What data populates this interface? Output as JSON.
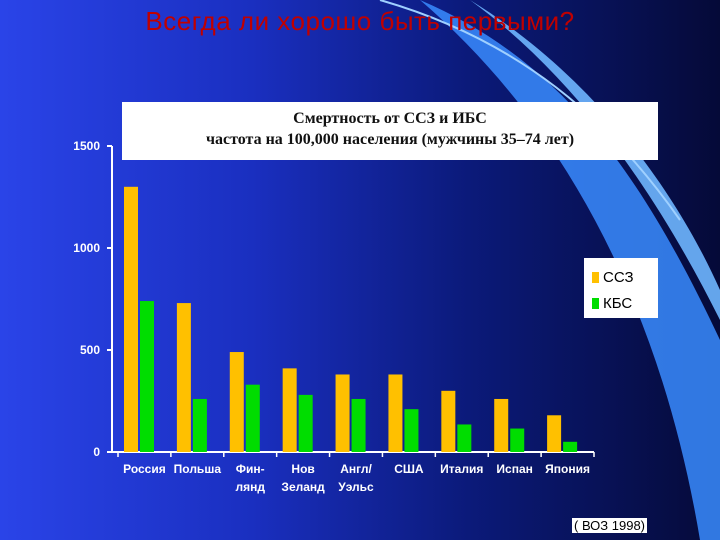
{
  "slide": {
    "title": "Всегда ли хорошо быть первыми?",
    "source": "( ВОЗ 1998)"
  },
  "colors": {
    "ccz": "#ffc000",
    "kbs": "#00dd00",
    "title": "#c00000"
  },
  "chart_data": {
    "type": "bar",
    "title_lines": [
      "Смертность от ССЗ и ИБС",
      "частота на  100,000 населения (мужчины 35–74 лет)"
    ],
    "categories": [
      [
        "Россия"
      ],
      [
        "Польша"
      ],
      [
        "Фин-",
        "лянд"
      ],
      [
        "Нов",
        "Зеланд"
      ],
      [
        "Англ/",
        "Уэльс"
      ],
      [
        "США"
      ],
      [
        "Италия"
      ],
      [
        "Испан"
      ],
      [
        "Япония"
      ]
    ],
    "series": [
      {
        "name": "ССЗ",
        "values": [
          1300,
          730,
          490,
          410,
          380,
          380,
          300,
          260,
          180
        ]
      },
      {
        "name": "КБС",
        "values": [
          740,
          260,
          330,
          280,
          260,
          210,
          135,
          115,
          50
        ]
      }
    ],
    "y_ticks": [
      "0",
      "500",
      "1000",
      "1500"
    ],
    "ylim": [
      0,
      1500
    ],
    "legend_position": "right",
    "grid": false
  }
}
